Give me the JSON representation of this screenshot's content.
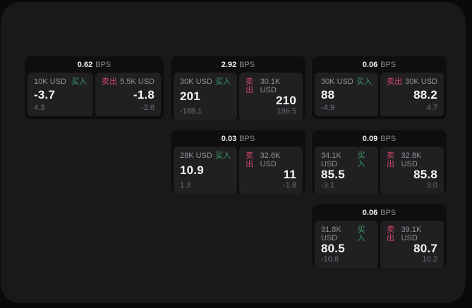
{
  "labels": {
    "bps_unit": "BPS",
    "buy": "买入",
    "sell": "卖出"
  },
  "colors": {
    "background": "#0a0a0b",
    "panel": "#19191b",
    "card": "#0e0e10",
    "subpanel": "#202023",
    "buy_green": "#3f9e63",
    "sell_red": "#d14767",
    "text_primary": "#f5f5f6",
    "text_muted": "#909094"
  },
  "cards": [
    {
      "bps": "0.62",
      "buy": {
        "amount": "10K USD",
        "price": "-3.7",
        "delta": "4.3"
      },
      "sell": {
        "amount": "5.5K USD",
        "price": "-1.8",
        "delta": "-2.6"
      }
    },
    {
      "bps": "2.92",
      "buy": {
        "amount": "30K USD",
        "price": "201",
        "delta": "-188.1"
      },
      "sell": {
        "amount": "30.1K USD",
        "price": "210",
        "delta": "196.5"
      }
    },
    {
      "bps": "0.06",
      "buy": {
        "amount": "30K USD",
        "price": "88",
        "delta": "-4.9"
      },
      "sell": {
        "amount": "30K USD",
        "price": "88.2",
        "delta": "4.7"
      }
    },
    {
      "bps": "0.03",
      "buy": {
        "amount": "28K USD",
        "price": "10.9",
        "delta": "1.3"
      },
      "sell": {
        "amount": "32.6K USD",
        "price": "11",
        "delta": "-1.8"
      }
    },
    {
      "bps": "0.09",
      "buy": {
        "amount": "34.1K USD",
        "price": "85.5",
        "delta": "-3.1"
      },
      "sell": {
        "amount": "32.8K USD",
        "price": "85.8",
        "delta": "3.0"
      }
    },
    {
      "bps": "0.06",
      "buy": {
        "amount": "31.8K USD",
        "price": "80.5",
        "delta": "-10.8"
      },
      "sell": {
        "amount": "39.1K USD",
        "price": "80.7",
        "delta": "10.2"
      }
    }
  ]
}
